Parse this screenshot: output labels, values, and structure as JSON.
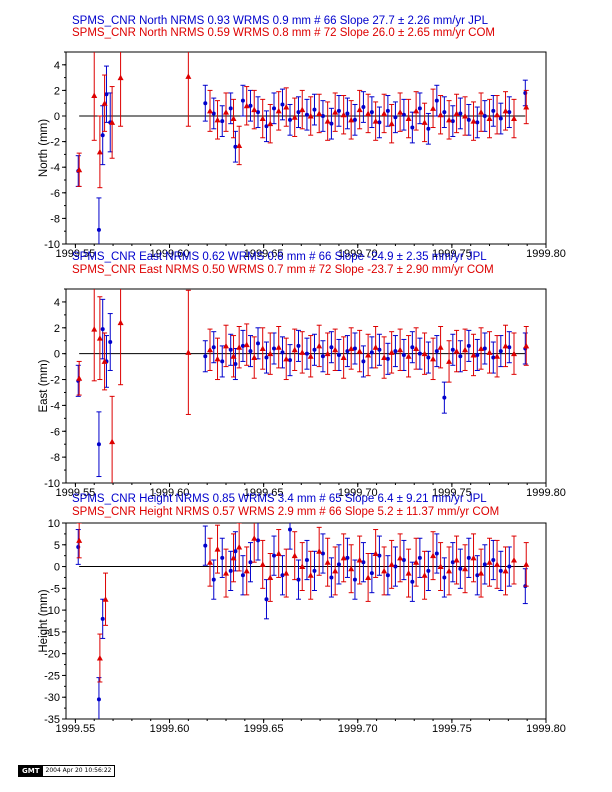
{
  "chart_data": [
    {
      "type": "scatter",
      "component": "north",
      "title_lines": [
        {
          "text": "SPMS_CNR North NRMS 0.93 WRMS  0.9 mm # 66 Slope   27.7 ±  2.26 mm/yr JPL",
          "color": "#0000cc"
        },
        {
          "text": "SPMS_CNR North NRMS 0.59 WRMS  0.8 mm # 72 Slope   26.0 ±  2.65 mm/yr COM",
          "color": "#dd0000"
        }
      ],
      "ylabel": "North (mm)",
      "xlim": [
        1999.545,
        1999.8
      ],
      "ylim": [
        -10,
        5
      ],
      "xticks": [
        1999.55,
        1999.6,
        1999.65,
        1999.7,
        1999.75,
        1999.8
      ],
      "xtick_labels": [
        "1999.55",
        "1999.60",
        "1999.65",
        "1999.70",
        "1999.75",
        "1999.80"
      ],
      "yticks": [
        -10,
        -8,
        -6,
        -4,
        -2,
        0,
        2,
        4
      ],
      "ytick_labels": [
        "-10",
        "-8",
        "-6",
        "-4",
        "-2",
        "0",
        "2",
        "4"
      ],
      "series": [
        {
          "color": "#0000cc",
          "marker": "circle",
          "x": [
            1999.5515,
            1999.5625,
            1999.5645,
            1999.5665,
            1999.5685,
            1999.619,
            1999.6235,
            1999.628,
            1999.6325,
            1999.635,
            1999.639,
            1999.643,
            1999.647,
            1999.6515,
            1999.6555,
            1999.66,
            1999.664,
            1999.6685,
            1999.673,
            1999.677,
            1999.6815,
            1999.686,
            1999.69,
            1999.6945,
            1999.6985,
            1999.703,
            1999.7075,
            1999.7115,
            1999.716,
            1999.72,
            1999.7245,
            1999.729,
            1999.733,
            1999.7375,
            1999.742,
            1999.746,
            1999.7505,
            1999.7545,
            1999.759,
            1999.7635,
            1999.7675,
            1999.772,
            1999.776,
            1999.7805,
            1999.789
          ],
          "y": [
            -4.3,
            -8.9,
            -1.5,
            1.7,
            -0.5,
            1.0,
            0.2,
            -0.4,
            0.6,
            -2.4,
            1.2,
            0.8,
            0.3,
            -0.8,
            0.6,
            0.9,
            -0.3,
            0.3,
            0.1,
            0.5,
            0.0,
            -0.6,
            0.4,
            0.2,
            -0.3,
            0.7,
            0.3,
            -0.5,
            0.4,
            -0.1,
            0.1,
            -0.9,
            0.6,
            -1.0,
            1.2,
            0.3,
            -0.4,
            0.2,
            -0.3,
            -0.5,
            0.0,
            0.4,
            -0.2,
            0.3,
            1.8
          ],
          "err": [
            1.2,
            2.5,
            2.3,
            2.2,
            2.3,
            1.4,
            1.2,
            1.2,
            1.2,
            1.2,
            1.2,
            1.2,
            1.2,
            1.2,
            1.2,
            1.2,
            1.2,
            1.2,
            1.2,
            1.2,
            1.2,
            1.2,
            1.2,
            1.2,
            1.2,
            1.2,
            1.2,
            1.2,
            1.2,
            1.2,
            1.2,
            1.2,
            1.2,
            1.2,
            1.2,
            1.2,
            1.2,
            1.2,
            1.2,
            1.2,
            1.2,
            1.2,
            1.2,
            1.2,
            1.0
          ]
        },
        {
          "color": "#dd0000",
          "marker": "triangle",
          "x": [
            1999.552,
            1999.56,
            1999.563,
            1999.5655,
            1999.5695,
            1999.574,
            1999.61,
            1999.6215,
            1999.6255,
            1999.63,
            1999.634,
            1999.637,
            1999.641,
            1999.645,
            1999.6495,
            1999.6535,
            1999.658,
            1999.662,
            1999.6665,
            1999.6705,
            1999.675,
            1999.6795,
            1999.684,
            1999.688,
            1999.6925,
            1999.6965,
            1999.701,
            1999.7055,
            1999.7095,
            1999.714,
            1999.718,
            1999.7225,
            1999.727,
            1999.731,
            1999.7355,
            1999.74,
            1999.744,
            1999.7485,
            1999.7525,
            1999.757,
            1999.7615,
            1999.7655,
            1999.77,
            1999.774,
            1999.7785,
            1999.783,
            1999.7895
          ],
          "y": [
            -4.2,
            1.6,
            -2.8,
            1.0,
            -0.5,
            3.0,
            3.1,
            0.4,
            -0.3,
            0.3,
            -0.2,
            -2.3,
            0.8,
            0.5,
            -0.2,
            -0.6,
            0.4,
            0.7,
            -0.1,
            0.5,
            0.0,
            0.2,
            -0.4,
            0.3,
            0.1,
            -0.3,
            0.5,
            0.2,
            -0.4,
            0.2,
            -0.6,
            0.3,
            -0.2,
            0.4,
            -0.5,
            0.6,
            0.1,
            -0.3,
            0.2,
            0.0,
            -0.4,
            0.3,
            -0.2,
            0.1,
            0.4,
            -0.2,
            0.7
          ],
          "err": [
            1.3,
            3.5,
            2.8,
            2.2,
            2.8,
            3.8,
            3.9,
            1.6,
            1.5,
            1.5,
            1.5,
            1.5,
            1.5,
            1.5,
            1.5,
            1.5,
            1.5,
            1.5,
            1.5,
            1.5,
            1.5,
            1.5,
            1.5,
            1.5,
            1.5,
            1.5,
            1.5,
            1.5,
            1.5,
            1.5,
            1.5,
            1.5,
            1.5,
            1.5,
            1.5,
            1.5,
            1.5,
            1.5,
            1.5,
            1.5,
            1.5,
            1.5,
            1.5,
            1.5,
            1.5,
            1.5,
            1.3
          ]
        }
      ]
    },
    {
      "type": "scatter",
      "component": "east",
      "title_lines": [
        {
          "text": "SPMS_CNR East NRMS 0.62 WRMS  0.6 mm # 66 Slope  -24.9 ±  2.35 mm/yr JPL",
          "color": "#0000cc"
        },
        {
          "text": "SPMS_CNR East NRMS 0.50 WRMS  0.7 mm # 72 Slope  -23.7 ±  2.90 mm/yr COM",
          "color": "#dd0000"
        }
      ],
      "ylabel": "East (mm)",
      "xlim": [
        1999.545,
        1999.8
      ],
      "ylim": [
        -10,
        5
      ],
      "xticks": [
        1999.55,
        1999.6,
        1999.65,
        1999.7,
        1999.75,
        1999.8
      ],
      "xtick_labels": [
        "1999.55",
        "1999.60",
        "1999.65",
        "1999.70",
        "1999.75",
        "1999.80"
      ],
      "yticks": [
        -10,
        -8,
        -6,
        -4,
        -2,
        0,
        2,
        4
      ],
      "ytick_labels": [
        "-10",
        "-8",
        "-6",
        "-4",
        "-2",
        "0",
        "2",
        "4"
      ],
      "series": [
        {
          "color": "#0000cc",
          "marker": "circle",
          "x": [
            1999.5515,
            1999.5625,
            1999.5645,
            1999.5665,
            1999.5685,
            1999.619,
            1999.6235,
            1999.628,
            1999.6325,
            1999.635,
            1999.639,
            1999.643,
            1999.647,
            1999.6515,
            1999.6555,
            1999.66,
            1999.664,
            1999.6685,
            1999.673,
            1999.677,
            1999.6815,
            1999.686,
            1999.69,
            1999.6945,
            1999.6985,
            1999.703,
            1999.7075,
            1999.7115,
            1999.716,
            1999.72,
            1999.7245,
            1999.729,
            1999.733,
            1999.7375,
            1999.742,
            1999.746,
            1999.7505,
            1999.7545,
            1999.759,
            1999.7635,
            1999.7675,
            1999.772,
            1999.776,
            1999.7805,
            1999.789
          ],
          "y": [
            -2.1,
            -7.0,
            1.9,
            -0.6,
            0.9,
            -0.2,
            0.5,
            -0.6,
            0.3,
            -0.8,
            0.6,
            0.2,
            0.8,
            -0.3,
            0.4,
            0.1,
            -0.5,
            0.6,
            0.0,
            0.3,
            -0.2,
            0.5,
            -0.1,
            0.2,
            0.4,
            -0.6,
            0.1,
            0.3,
            -0.4,
            0.2,
            -0.1,
            0.5,
            0.0,
            -0.3,
            0.2,
            -3.4,
            0.3,
            -0.2,
            0.6,
            -0.1,
            0.4,
            -0.3,
            0.2,
            0.5,
            0.4
          ],
          "err": [
            1.2,
            2.5,
            2.3,
            2.0,
            2.2,
            1.2,
            1.2,
            1.2,
            1.2,
            1.2,
            1.2,
            1.2,
            1.2,
            1.2,
            1.2,
            1.2,
            1.2,
            1.2,
            1.2,
            1.2,
            1.2,
            1.2,
            1.2,
            1.2,
            1.2,
            1.2,
            1.2,
            1.2,
            1.2,
            1.2,
            1.2,
            1.2,
            1.2,
            1.2,
            1.2,
            1.2,
            1.2,
            1.2,
            1.2,
            1.2,
            1.2,
            1.2,
            1.2,
            1.2,
            1.2
          ]
        },
        {
          "color": "#dd0000",
          "marker": "triangle",
          "x": [
            1999.552,
            1999.56,
            1999.563,
            1999.5655,
            1999.5695,
            1999.574,
            1999.61,
            1999.6215,
            1999.6255,
            1999.63,
            1999.634,
            1999.637,
            1999.641,
            1999.645,
            1999.6495,
            1999.6535,
            1999.658,
            1999.662,
            1999.6665,
            1999.6705,
            1999.675,
            1999.6795,
            1999.684,
            1999.688,
            1999.6925,
            1999.6965,
            1999.701,
            1999.7055,
            1999.7095,
            1999.714,
            1999.718,
            1999.7225,
            1999.727,
            1999.731,
            1999.7355,
            1999.74,
            1999.744,
            1999.7485,
            1999.7525,
            1999.757,
            1999.7615,
            1999.7655,
            1999.77,
            1999.774,
            1999.7785,
            1999.783,
            1999.7895
          ],
          "y": [
            -1.9,
            1.9,
            1.2,
            -0.6,
            -6.8,
            2.4,
            0.1,
            0.3,
            -0.4,
            0.6,
            -0.2,
            0.5,
            0.7,
            -0.3,
            0.4,
            0.0,
            0.5,
            -0.4,
            0.3,
            0.1,
            -0.2,
            0.6,
            0.0,
            0.3,
            -0.3,
            0.4,
            0.2,
            -0.1,
            0.5,
            -0.3,
            0.1,
            0.3,
            -0.2,
            0.4,
            0.0,
            -0.4,
            0.5,
            -0.6,
            0.2,
            0.3,
            -0.1,
            0.4,
            0.1,
            -0.2,
            0.6,
            0.0,
            0.6
          ],
          "err": [
            1.3,
            4.0,
            3.2,
            2.2,
            3.5,
            4.8,
            4.8,
            1.6,
            1.6,
            1.6,
            1.6,
            1.6,
            1.6,
            1.6,
            1.6,
            1.6,
            1.6,
            1.6,
            1.6,
            1.6,
            1.6,
            1.6,
            1.6,
            1.6,
            1.6,
            1.6,
            1.6,
            1.6,
            1.6,
            1.6,
            1.6,
            1.6,
            1.6,
            1.6,
            1.6,
            1.6,
            1.6,
            1.6,
            1.6,
            1.6,
            1.6,
            1.6,
            1.6,
            1.6,
            1.6,
            1.6,
            1.5
          ]
        }
      ]
    },
    {
      "type": "scatter",
      "component": "height",
      "title_lines": [
        {
          "text": "SPMS_CNR Height NRMS 0.85 WRMS  3.4 mm # 65 Slope    6.4 ±  9.21 mm/yr JPL",
          "color": "#0000cc"
        },
        {
          "text": "SPMS_CNR Height NRMS 0.57 WRMS  2.9 mm # 66 Slope    5.2 ± 11.37 mm/yr COM",
          "color": "#dd0000"
        }
      ],
      "ylabel": "Height (mm)",
      "xlim": [
        1999.545,
        1999.8
      ],
      "ylim": [
        -35,
        10
      ],
      "xticks": [
        1999.55,
        1999.6,
        1999.65,
        1999.7,
        1999.75,
        1999.8
      ],
      "xtick_labels": [
        "1999.55",
        "1999.60",
        "1999.65",
        "1999.70",
        "1999.75",
        "1999.80"
      ],
      "yticks": [
        -35,
        -30,
        -25,
        -20,
        -15,
        -10,
        -5,
        0,
        5,
        10
      ],
      "ytick_labels": [
        "-35",
        "-30",
        "-25",
        "-20",
        "-15",
        "-10",
        "-5",
        "0",
        "5",
        "10"
      ],
      "series": [
        {
          "color": "#0000cc",
          "marker": "circle",
          "x": [
            1999.5515,
            1999.5625,
            1999.5645,
            1999.619,
            1999.6235,
            1999.628,
            1999.6325,
            1999.635,
            1999.639,
            1999.643,
            1999.647,
            1999.6515,
            1999.6555,
            1999.66,
            1999.664,
            1999.6685,
            1999.673,
            1999.677,
            1999.6815,
            1999.686,
            1999.69,
            1999.6945,
            1999.6985,
            1999.703,
            1999.7075,
            1999.7115,
            1999.716,
            1999.72,
            1999.7245,
            1999.729,
            1999.733,
            1999.7375,
            1999.742,
            1999.746,
            1999.7505,
            1999.7545,
            1999.759,
            1999.7635,
            1999.7675,
            1999.772,
            1999.776,
            1999.7805,
            1999.789
          ],
          "y": [
            4.5,
            -30.5,
            -12.0,
            4.8,
            -3.0,
            2.0,
            -1.0,
            3.5,
            -2.0,
            1.0,
            6.0,
            -7.5,
            2.5,
            -2.0,
            8.5,
            -3.0,
            1.5,
            -1.0,
            3.0,
            -2.5,
            0.5,
            2.0,
            -3.0,
            1.0,
            -1.5,
            2.5,
            -2.0,
            0.0,
            1.5,
            -3.5,
            2.0,
            -1.0,
            3.0,
            -2.5,
            1.0,
            -0.5,
            2.0,
            -2.0,
            0.5,
            1.5,
            -1.0,
            0.0,
            -4.5
          ],
          "err": [
            4.0,
            5.0,
            4.5,
            4.5,
            4.5,
            4.5,
            4.5,
            4.5,
            4.5,
            4.5,
            4.5,
            4.5,
            4.5,
            4.5,
            4.5,
            4.5,
            4.5,
            4.5,
            4.5,
            4.5,
            4.5,
            4.5,
            4.5,
            4.5,
            4.5,
            4.5,
            4.5,
            4.5,
            4.5,
            4.5,
            4.5,
            4.5,
            4.5,
            4.5,
            4.5,
            4.5,
            4.5,
            4.5,
            4.5,
            4.5,
            4.5,
            4.5,
            4.0
          ]
        },
        {
          "color": "#dd0000",
          "marker": "triangle",
          "x": [
            1999.552,
            1999.563,
            1999.566,
            1999.6215,
            1999.6255,
            1999.63,
            1999.634,
            1999.637,
            1999.641,
            1999.645,
            1999.6495,
            1999.6535,
            1999.658,
            1999.662,
            1999.6665,
            1999.6705,
            1999.675,
            1999.6795,
            1999.684,
            1999.688,
            1999.6925,
            1999.6965,
            1999.701,
            1999.7055,
            1999.7095,
            1999.714,
            1999.718,
            1999.7225,
            1999.727,
            1999.731,
            1999.7355,
            1999.74,
            1999.744,
            1999.7485,
            1999.7525,
            1999.757,
            1999.7615,
            1999.7655,
            1999.77,
            1999.774,
            1999.7785,
            1999.783,
            1999.7895
          ],
          "y": [
            6.0,
            -21.0,
            -7.5,
            1.0,
            4.0,
            -1.5,
            2.0,
            4.5,
            -1.0,
            6.5,
            0.5,
            -2.5,
            3.0,
            -1.5,
            2.5,
            0.0,
            -2.0,
            3.5,
            1.0,
            -1.0,
            2.0,
            -0.5,
            1.5,
            -2.5,
            3.0,
            -1.0,
            0.5,
            2.0,
            -1.5,
            1.0,
            -2.0,
            2.5,
            0.0,
            -1.0,
            1.5,
            -0.5,
            2.0,
            -1.5,
            1.0,
            0.5,
            -1.0,
            1.5,
            0.5
          ],
          "err": [
            4.0,
            5.5,
            6.0,
            5.5,
            5.5,
            5.5,
            5.5,
            5.5,
            5.5,
            5.5,
            5.5,
            5.5,
            5.5,
            5.5,
            5.5,
            5.5,
            5.5,
            5.5,
            5.5,
            5.5,
            5.5,
            5.5,
            5.5,
            5.5,
            5.5,
            5.5,
            5.5,
            5.5,
            5.5,
            5.5,
            5.5,
            5.5,
            5.5,
            5.5,
            5.5,
            5.5,
            5.5,
            5.5,
            5.5,
            5.5,
            5.5,
            5.5,
            5.0
          ]
        }
      ]
    }
  ],
  "footer": {
    "logo_text": "GMT",
    "timestamp": "2004 Apr 20 10:56:22"
  }
}
